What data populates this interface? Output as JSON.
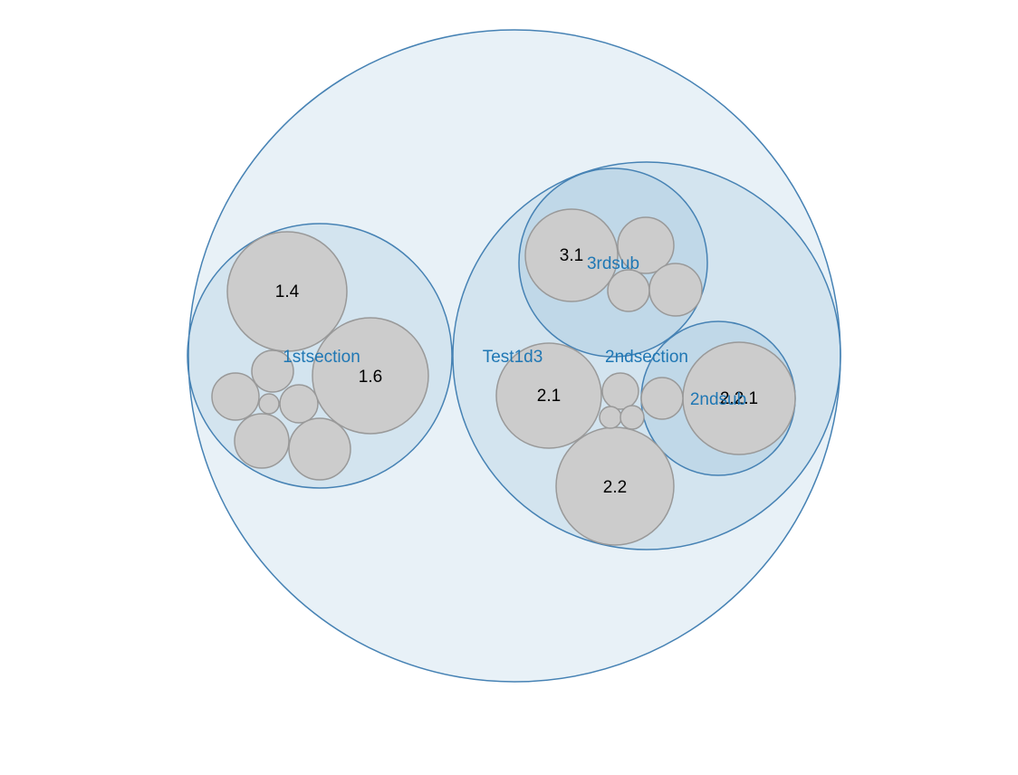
{
  "diagram": {
    "type": "circle-packing",
    "root_label": "Test1d3",
    "groups": [
      {
        "id": "1stsection",
        "label": "1stsection",
        "parent": "root",
        "leaves": [
          "1.4",
          "1.6",
          "",
          "",
          "",
          "",
          "",
          ""
        ]
      },
      {
        "id": "2ndsection",
        "label": "2ndsection",
        "parent": "root",
        "leaves": [
          "2.1",
          "2.2",
          "",
          "",
          "",
          ""
        ]
      },
      {
        "id": "3rdsub",
        "label": "3rdsub",
        "parent": "2ndsection",
        "leaves": [
          "3.1",
          "",
          "",
          ""
        ]
      },
      {
        "id": "2ndsub",
        "label": "2ndsub",
        "parent": "2ndsection",
        "leaves": [
          "2.2.1"
        ]
      }
    ]
  }
}
